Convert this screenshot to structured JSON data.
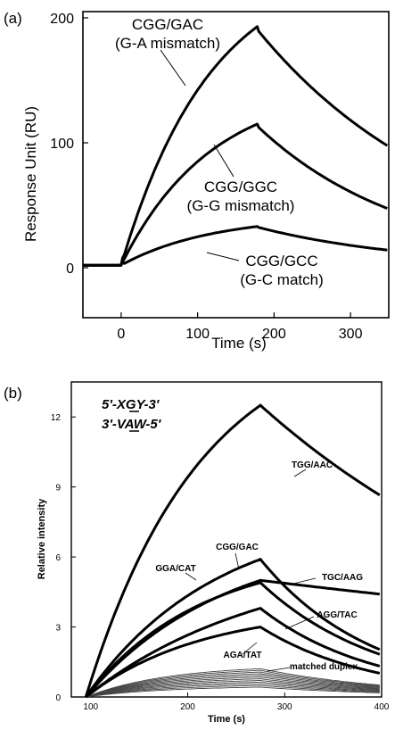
{
  "chart_data": [
    {
      "panel_label": "(a)",
      "type": "line",
      "xlabel": "Time (s)",
      "ylabel": "Response Unit (RU)",
      "xlim": [
        -50,
        350
      ],
      "ylim": [
        -40,
        205
      ],
      "x_ticks": [
        "0",
        "100",
        "200",
        "300"
      ],
      "y_ticks": [
        "0",
        "100",
        "200"
      ],
      "series": [
        {
          "name": "CGG/GAC (G-A mismatch)",
          "label_lines": [
            "CGG/GAC",
            "(G-A mismatch)"
          ],
          "peak": 193,
          "end": 97
        },
        {
          "name": "CGG/GGC (G-G mismatch)",
          "label_lines": [
            "CGG/GGC",
            "(G-G mismatch)"
          ],
          "peak": 115,
          "end": 47
        },
        {
          "name": "CGG/GCC (G-C match)",
          "label_lines": [
            "CGG/GCC",
            "(G-C match)"
          ],
          "peak": 33,
          "end": 14
        }
      ],
      "injection_start": 0,
      "injection_end": 178,
      "baseline": 2
    },
    {
      "panel_label": "(b)",
      "type": "line",
      "xlabel": "Time (s)",
      "ylabel": "Relative intensity",
      "xlim": [
        80,
        400
      ],
      "ylim": [
        0,
        13.5
      ],
      "x_ticks": [
        "100",
        "200",
        "300",
        "400"
      ],
      "y_ticks": [
        "0",
        "3",
        "6",
        "9",
        "12"
      ],
      "annotation_lines": [
        "5'-XGY-3'",
        "3'-VAW-5'"
      ],
      "series": [
        {
          "name": "TGG/AAC",
          "peak": 12.5,
          "end": 8.6
        },
        {
          "name": "CGG/GAC",
          "peak": 5.9,
          "end": 2.0
        },
        {
          "name": "TGC/AAG",
          "peak": 5.0,
          "end": 4.4
        },
        {
          "name": "GGA/CAT",
          "peak": 4.9,
          "end": 1.8
        },
        {
          "name": "AGG/TAC",
          "peak": 3.8,
          "end": 1.3
        },
        {
          "name": "AGA/TAT",
          "peak": 3.0,
          "end": 1.0
        },
        {
          "name": "matched duplex",
          "peak": 1.2,
          "end": 0.5
        }
      ],
      "injection_start": 95,
      "injection_end": 275
    }
  ]
}
